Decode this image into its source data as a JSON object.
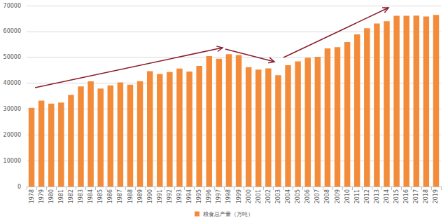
{
  "chart_data": {
    "type": "bar",
    "categories": [
      "1978",
      "1979",
      "1980",
      "1981",
      "1982",
      "1983",
      "1984",
      "1985",
      "1986",
      "1987",
      "1988",
      "1989",
      "1990",
      "1991",
      "1992",
      "1993",
      "1994",
      "1995",
      "1996",
      "1997",
      "1998",
      "1999",
      "2000",
      "2001",
      "2002",
      "2003",
      "2004",
      "2005",
      "2006",
      "2007",
      "2008",
      "2009",
      "2010",
      "2011",
      "2012",
      "2013",
      "2014",
      "2015",
      "2016",
      "2017",
      "2018",
      "2019"
    ],
    "series": [
      {
        "name": "粮食总产量（万吨）",
        "color": "#f28c3a",
        "values": [
          30477,
          33212,
          32056,
          32502,
          35450,
          38728,
          40731,
          37911,
          39151,
          40298,
          39408,
          40755,
          44624,
          43529,
          44266,
          45649,
          44510,
          46662,
          50454,
          49417,
          51230,
          50839,
          46218,
          45264,
          45706,
          43070,
          46947,
          48402,
          49804,
          50160,
          53434,
          53941,
          55911,
          58849,
          61223,
          63048,
          63965,
          66060,
          66044,
          66161,
          65789,
          66384
        ]
      }
    ],
    "ylim": [
      0,
      70000
    ],
    "yticks": [
      0,
      10000,
      20000,
      30000,
      40000,
      50000,
      60000,
      70000
    ],
    "grid": true,
    "legend": "bottom"
  }
}
